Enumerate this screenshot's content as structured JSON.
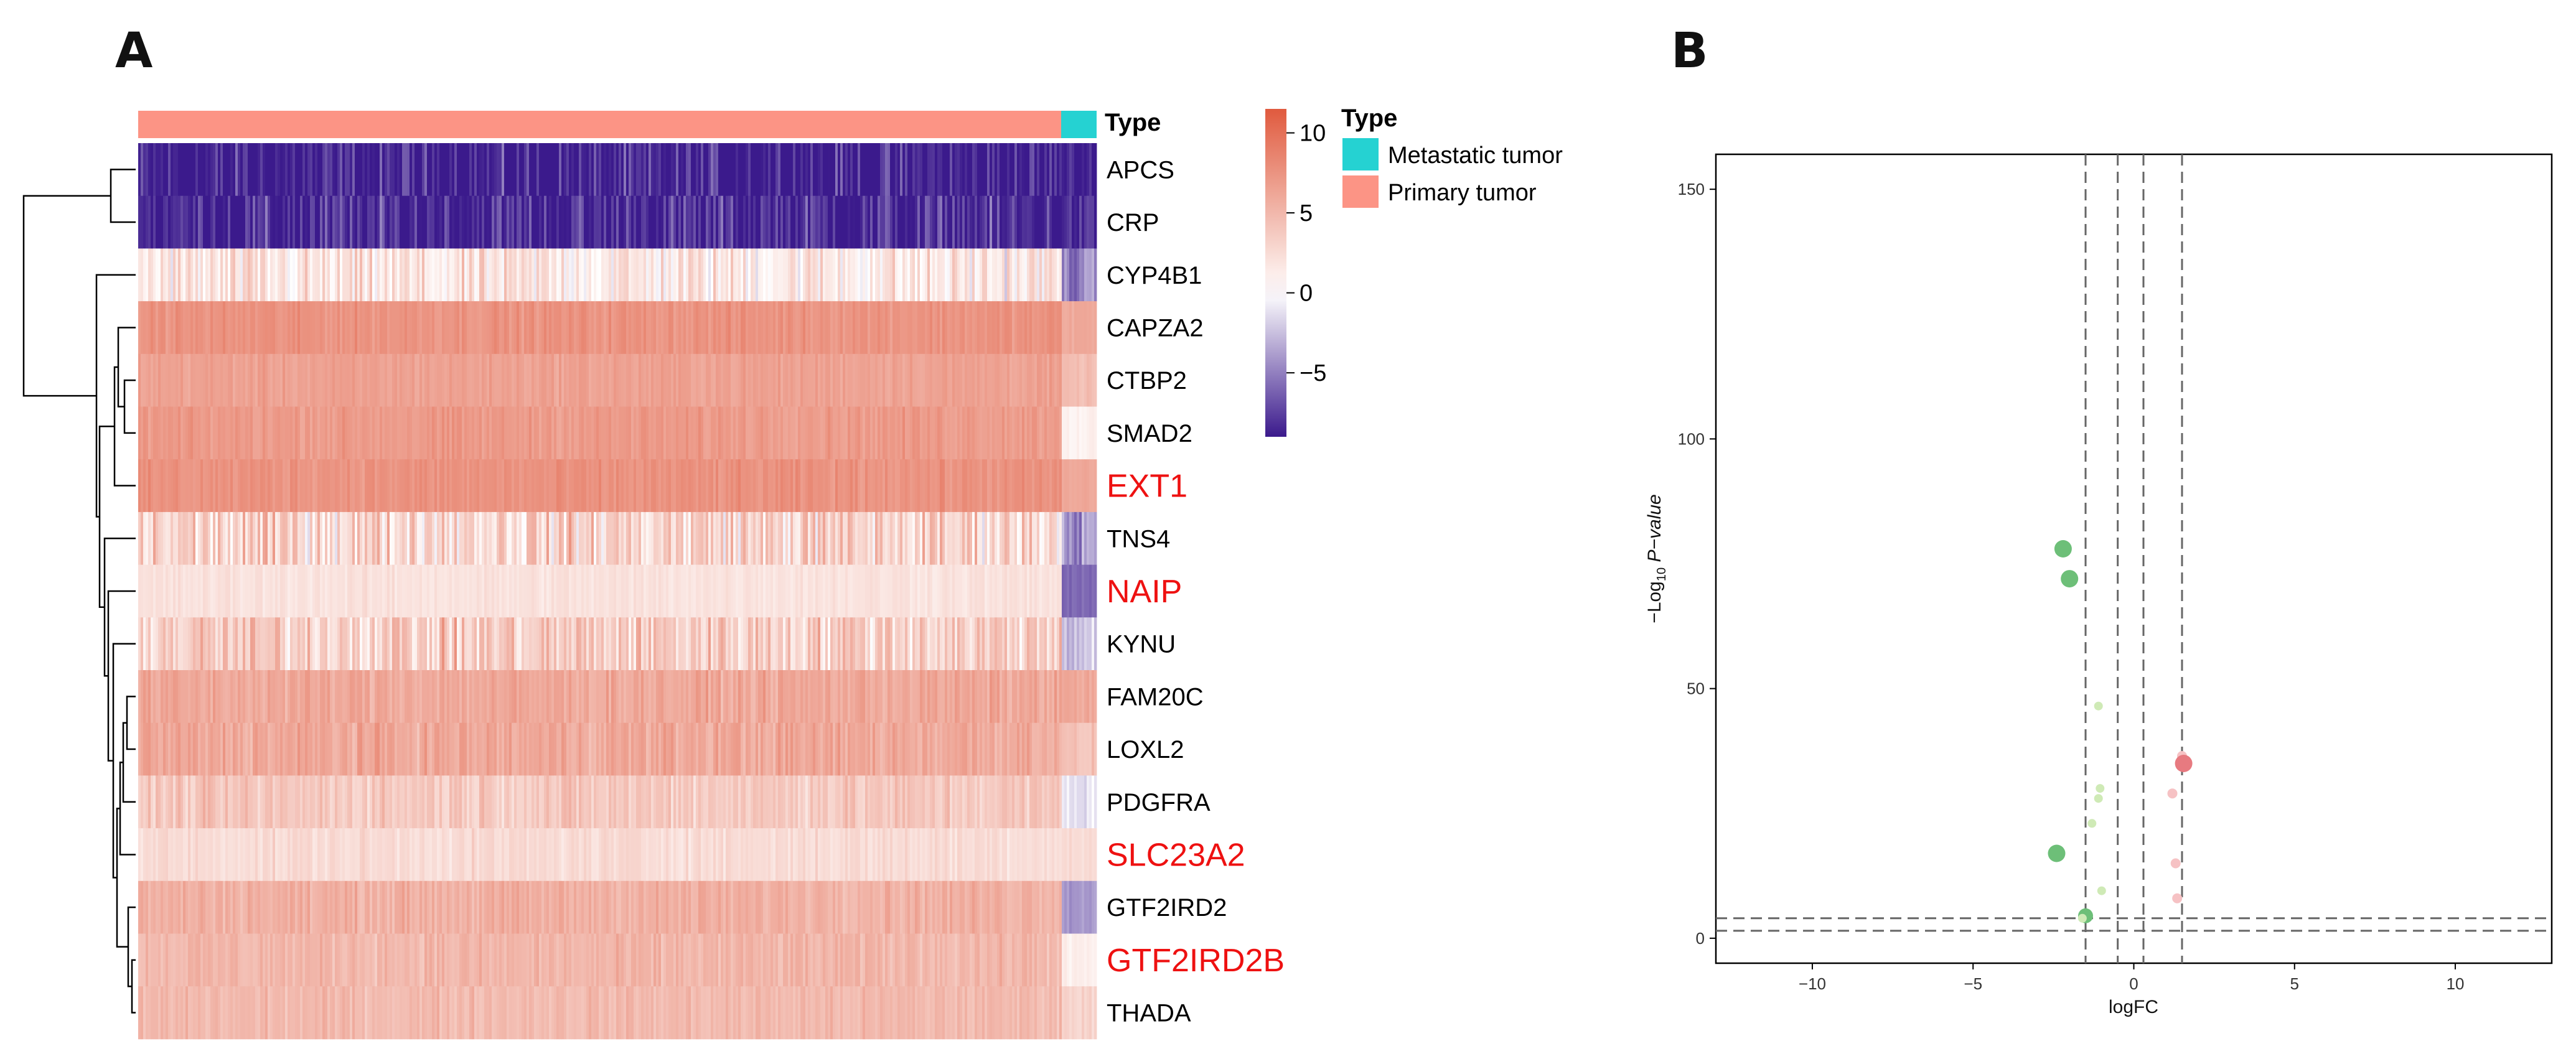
{
  "panel_a": {
    "letter": "A",
    "type_label": "Type",
    "genes": [
      {
        "name": "APCS",
        "highlight": false,
        "base": -9,
        "noise": 2.6,
        "metastatic": -9
      },
      {
        "name": "CRP",
        "highlight": false,
        "base": -8.5,
        "noise": 2.6,
        "metastatic": -8.5
      },
      {
        "name": "CYP4B1",
        "highlight": false,
        "base": 1.5,
        "noise": 2.6,
        "metastatic": -5
      },
      {
        "name": "CAPZA2",
        "highlight": false,
        "base": 7.5,
        "noise": 0.8,
        "metastatic": 6
      },
      {
        "name": "CTBP2",
        "highlight": false,
        "base": 6.5,
        "noise": 0.7,
        "metastatic": 4.5
      },
      {
        "name": "SMAD2",
        "highlight": false,
        "base": 7,
        "noise": 0.8,
        "metastatic": 1
      },
      {
        "name": "EXT1",
        "highlight": true,
        "base": 7.5,
        "noise": 0.8,
        "metastatic": 6
      },
      {
        "name": "TNS4",
        "highlight": false,
        "base": 3,
        "noise": 3.2,
        "metastatic": -4
      },
      {
        "name": "NAIP",
        "highlight": true,
        "base": 2,
        "noise": 0.6,
        "metastatic": -6
      },
      {
        "name": "KYNU",
        "highlight": false,
        "base": 3.5,
        "noise": 2.8,
        "metastatic": -2
      },
      {
        "name": "FAM20C",
        "highlight": false,
        "base": 6,
        "noise": 1.1,
        "metastatic": 6
      },
      {
        "name": "LOXL2",
        "highlight": false,
        "base": 6,
        "noise": 1.3,
        "metastatic": 4
      },
      {
        "name": "PDGFRA",
        "highlight": false,
        "base": 3.8,
        "noise": 1.4,
        "metastatic": -1
      },
      {
        "name": "SLC23A2",
        "highlight": true,
        "base": 2.5,
        "noise": 0.8,
        "metastatic": 2.5
      },
      {
        "name": "GTF2IRD2",
        "highlight": false,
        "base": 5.5,
        "noise": 1.0,
        "metastatic": -4
      },
      {
        "name": "GTF2IRD2B",
        "highlight": true,
        "base": 5,
        "noise": 1.0,
        "metastatic": 1
      },
      {
        "name": "THADA",
        "highlight": false,
        "base": 4.8,
        "noise": 0.9,
        "metastatic": 3
      }
    ],
    "colorbar": {
      "ticks": [
        10,
        5,
        0,
        -5
      ],
      "min": -9,
      "max": 11.5,
      "colors": {
        "high": "#e05a3e",
        "mid": "#ffffff",
        "low": "#3b1a8c"
      }
    },
    "legend": {
      "title": "Type",
      "items": [
        {
          "label": "Metastatic tumor",
          "color": "#25d2d2"
        },
        {
          "label": "Primary tumor",
          "color": "#fc9485"
        }
      ]
    }
  },
  "panel_b": {
    "letter": "B"
  },
  "chart_data": {
    "type": "scatter",
    "title": "",
    "xlabel": "logFC",
    "ylabel": "−Log10 P−value",
    "ylabel_parts": {
      "prefix": "−Log",
      "sub": "10",
      "suffix": " P−value"
    },
    "xlim": [
      -13,
      13
    ],
    "ylim": [
      -5,
      157
    ],
    "xticks": [
      -10,
      -5,
      0,
      5,
      10
    ],
    "yticks": [
      0,
      50,
      100,
      150
    ],
    "vlines": [
      -1.5,
      -0.5,
      0.3,
      1.5
    ],
    "hlines": [
      1.5,
      4
    ],
    "points": [
      {
        "x": -2.2,
        "y": 78,
        "size": 14,
        "group": "down"
      },
      {
        "x": -2.0,
        "y": 72,
        "size": 14,
        "group": "down"
      },
      {
        "x": -2.4,
        "y": 17,
        "size": 14,
        "group": "down"
      },
      {
        "x": -1.5,
        "y": 4.5,
        "size": 12,
        "group": "down"
      },
      {
        "x": -1.1,
        "y": 46.5,
        "size": 7,
        "group": "down-ns"
      },
      {
        "x": -1.05,
        "y": 30,
        "size": 7,
        "group": "down-ns"
      },
      {
        "x": -1.1,
        "y": 28,
        "size": 7,
        "group": "down-ns"
      },
      {
        "x": -1.3,
        "y": 23,
        "size": 7,
        "group": "down-ns"
      },
      {
        "x": -1.0,
        "y": 9.5,
        "size": 7,
        "group": "down-ns"
      },
      {
        "x": -1.6,
        "y": 4,
        "size": 7,
        "group": "down-ns"
      },
      {
        "x": 1.5,
        "y": 36.5,
        "size": 8,
        "group": "up-ns"
      },
      {
        "x": 1.55,
        "y": 35,
        "size": 14,
        "group": "up"
      },
      {
        "x": 1.2,
        "y": 29,
        "size": 8,
        "group": "up-ns"
      },
      {
        "x": 1.3,
        "y": 15,
        "size": 8,
        "group": "up-ns"
      },
      {
        "x": 1.35,
        "y": 8,
        "size": 8,
        "group": "up-ns"
      }
    ],
    "group_colors": {
      "down": "#6dbf78",
      "down-ns": "#cfeab6",
      "up": "#e77a80",
      "up-ns": "#f6c2c4"
    }
  }
}
